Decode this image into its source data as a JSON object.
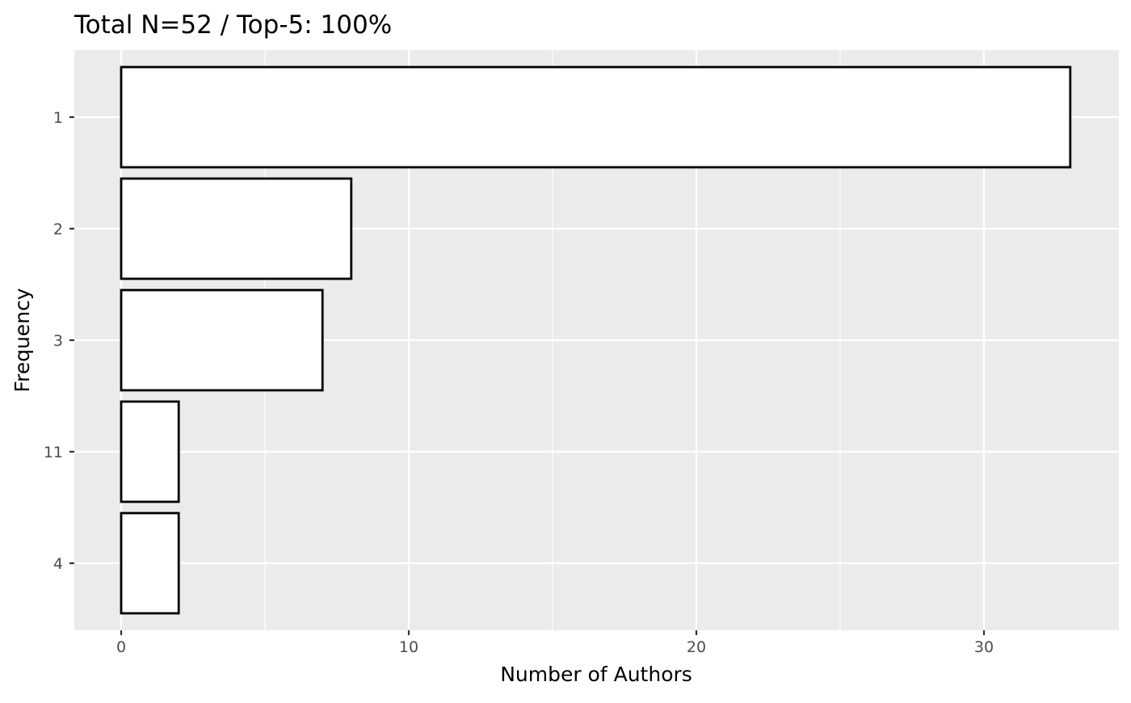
{
  "chart_data": {
    "type": "bar",
    "orientation": "horizontal",
    "title": "Total N=52 / Top-5: 100%",
    "xlabel": "Number of Authors",
    "ylabel": "Frequency",
    "categories": [
      "1",
      "2",
      "3",
      "11",
      "4"
    ],
    "values": [
      33,
      8,
      7,
      2,
      2
    ],
    "xlim": [
      0,
      33
    ],
    "x_ticks": [
      "0",
      "10",
      "20",
      "30"
    ],
    "bar_fill": "#ffffff",
    "bar_outline": "#000000",
    "panel_background": "#ebebeb",
    "grid": true,
    "legend": "none"
  }
}
